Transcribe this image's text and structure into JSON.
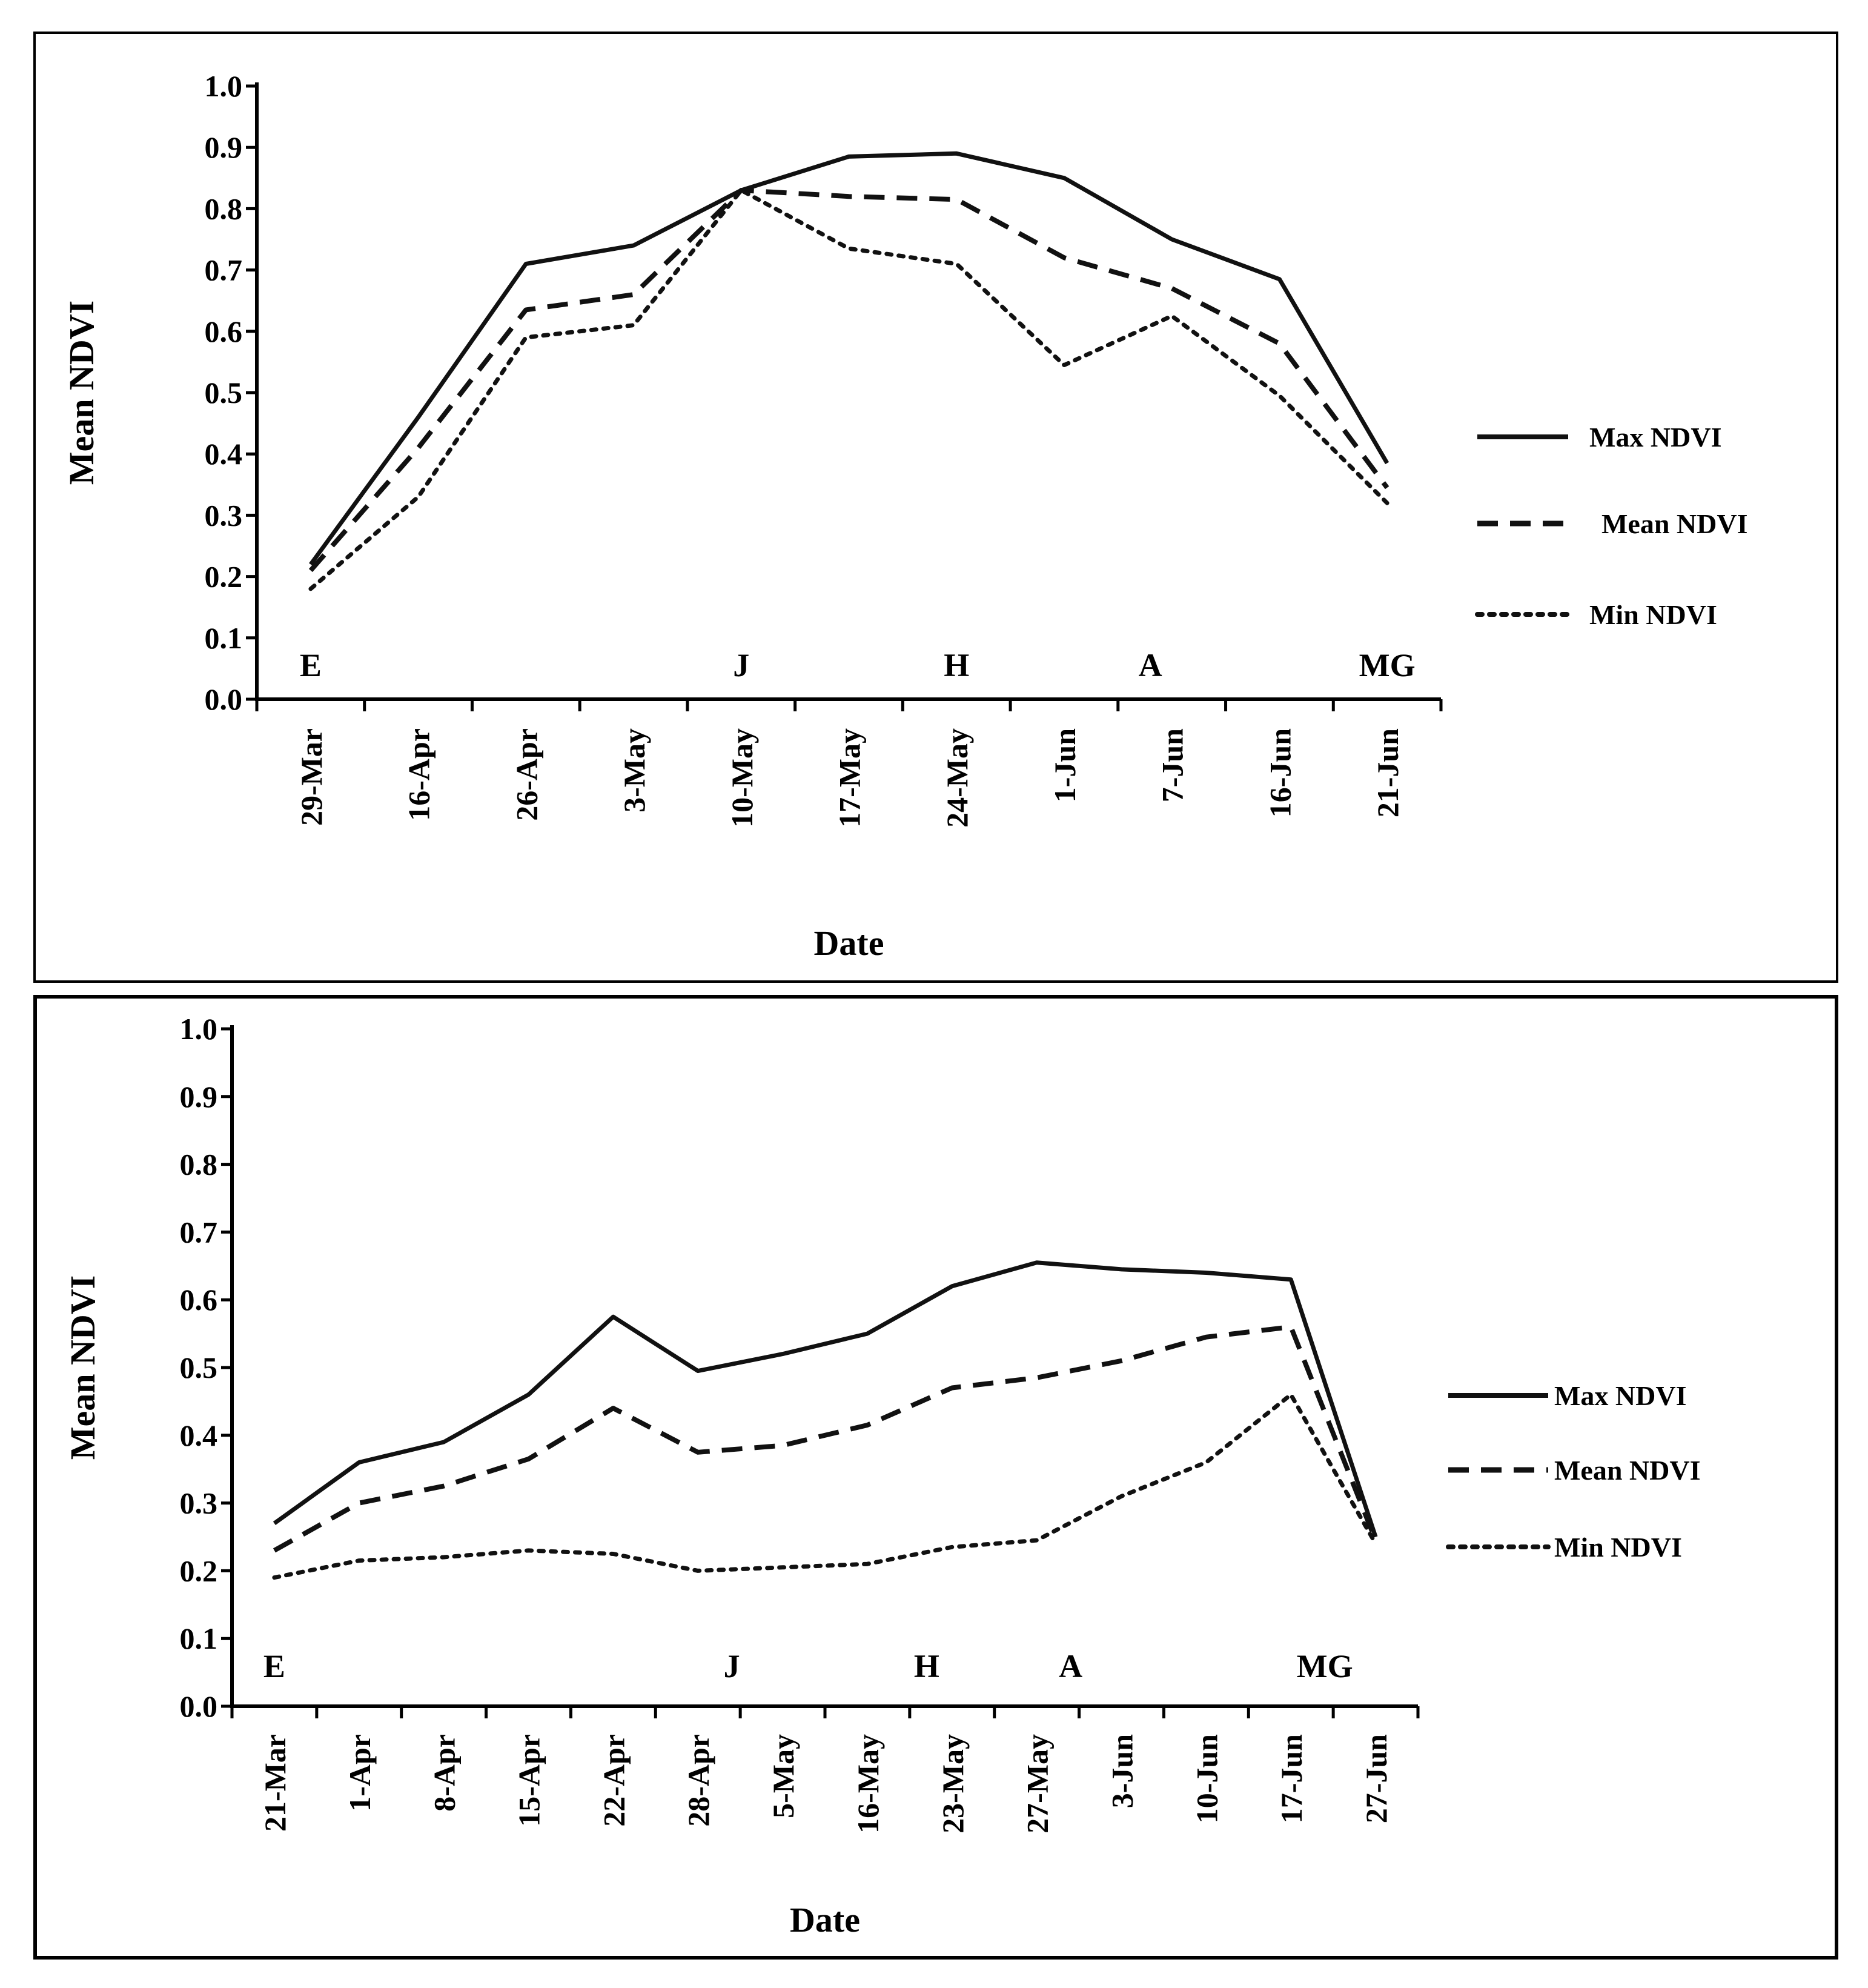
{
  "chart_data": [
    {
      "type": "line",
      "title": "",
      "xlabel": "Date",
      "ylabel": "Mean NDVI",
      "ylim": [
        0.0,
        1.0
      ],
      "yticks": [
        "0.0",
        "0.1",
        "0.2",
        "0.3",
        "0.4",
        "0.5",
        "0.6",
        "0.7",
        "0.8",
        "0.9",
        "1.0"
      ],
      "categories": [
        "29-Mar",
        "16-Apr",
        "26-Apr",
        "3-May",
        "10-May",
        "17-May",
        "24-May",
        "1-Jun",
        "7-Jun",
        "16-Jun",
        "21-Jun"
      ],
      "series": [
        {
          "name": "Max NDVI",
          "style": "solid",
          "values": [
            0.22,
            0.46,
            0.71,
            0.74,
            0.83,
            0.885,
            0.89,
            0.85,
            0.75,
            0.685,
            0.385
          ]
        },
        {
          "name": "Mean NDVI",
          "style": "dashed",
          "values": [
            0.21,
            0.41,
            0.635,
            0.66,
            0.83,
            0.82,
            0.815,
            0.72,
            0.67,
            0.58,
            0.345
          ]
        },
        {
          "name": "Min NDVI",
          "style": "dotted",
          "values": [
            0.18,
            0.33,
            0.59,
            0.61,
            0.83,
            0.735,
            0.71,
            0.545,
            0.625,
            0.495,
            0.32
          ]
        }
      ],
      "stage_labels": [
        {
          "text": "E",
          "at": 0
        },
        {
          "text": "J",
          "at": 4
        },
        {
          "text": "H",
          "at": 6
        },
        {
          "text": "A",
          "at": 7.8
        },
        {
          "text": "MG",
          "at": 10
        }
      ],
      "legend": "right"
    },
    {
      "type": "line",
      "title": "",
      "xlabel": "Date",
      "ylabel": "Mean NDVI",
      "ylim": [
        0.0,
        1.0
      ],
      "yticks": [
        "0.0",
        "0.1",
        "0.2",
        "0.3",
        "0.4",
        "0.5",
        "0.6",
        "0.7",
        "0.8",
        "0.9",
        "1.0"
      ],
      "categories": [
        "21-Mar",
        "1-Apr",
        "8-Apr",
        "15-Apr",
        "22-Apr",
        "28-Apr",
        "5-May",
        "16-May",
        "23-May",
        "27-May",
        "3-Jun",
        "10-Jun",
        "17-Jun",
        "27-Jun"
      ],
      "series": [
        {
          "name": "Max NDVI",
          "style": "solid",
          "values": [
            0.27,
            0.36,
            0.39,
            0.46,
            0.575,
            0.495,
            0.52,
            0.55,
            0.62,
            0.655,
            0.645,
            0.64,
            0.63,
            0.25
          ]
        },
        {
          "name": "Mean NDVI",
          "style": "dashed",
          "values": [
            0.23,
            0.3,
            0.325,
            0.365,
            0.44,
            0.375,
            0.385,
            0.415,
            0.47,
            0.485,
            0.51,
            0.545,
            0.56,
            0.245
          ]
        },
        {
          "name": "Min NDVI",
          "style": "dotted",
          "values": [
            0.19,
            0.215,
            0.22,
            0.23,
            0.225,
            0.2,
            0.205,
            0.21,
            0.235,
            0.245,
            0.31,
            0.36,
            0.46,
            0.24
          ]
        }
      ],
      "stage_labels": [
        {
          "text": "E",
          "at": 0
        },
        {
          "text": "J",
          "at": 5.4
        },
        {
          "text": "H",
          "at": 7.7
        },
        {
          "text": "A",
          "at": 9.4
        },
        {
          "text": "MG",
          "at": 12.4
        }
      ],
      "legend": "right"
    }
  ]
}
